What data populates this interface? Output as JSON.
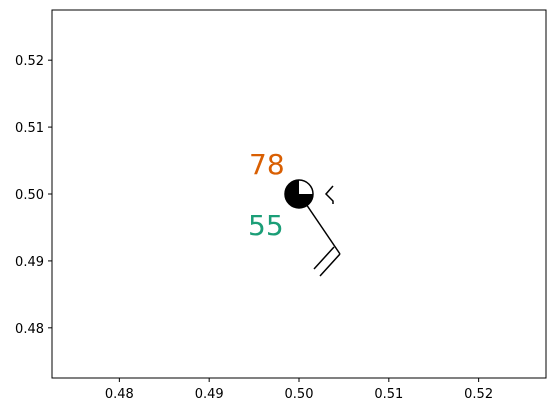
{
  "chart_data": {
    "type": "scatter",
    "title": "",
    "xlabel": "",
    "ylabel": "",
    "xlim": [
      0.4725,
      0.5275
    ],
    "ylim": [
      0.4725,
      0.5275
    ],
    "x_ticks": [
      "0.48",
      "0.49",
      "0.50",
      "0.51",
      "0.52"
    ],
    "x_tick_values": [
      0.48,
      0.49,
      0.5,
      0.51,
      0.52
    ],
    "y_ticks": [
      "0.48",
      "0.49",
      "0.50",
      "0.51",
      "0.52"
    ],
    "y_tick_values": [
      0.48,
      0.49,
      0.5,
      0.51,
      0.52
    ],
    "grid": false,
    "station": {
      "x": 0.5,
      "y": 0.5,
      "temperature": "78",
      "dewpoint": "55",
      "sky_cover": "three-quarter-filled-circle",
      "pressure_tendency_symbol": "falling-then-steady",
      "wind_barbs": 2
    },
    "colors": {
      "temperature": "#d95f02",
      "dewpoint": "#1b9e77",
      "station": "#000000",
      "axes": "#000000"
    }
  }
}
